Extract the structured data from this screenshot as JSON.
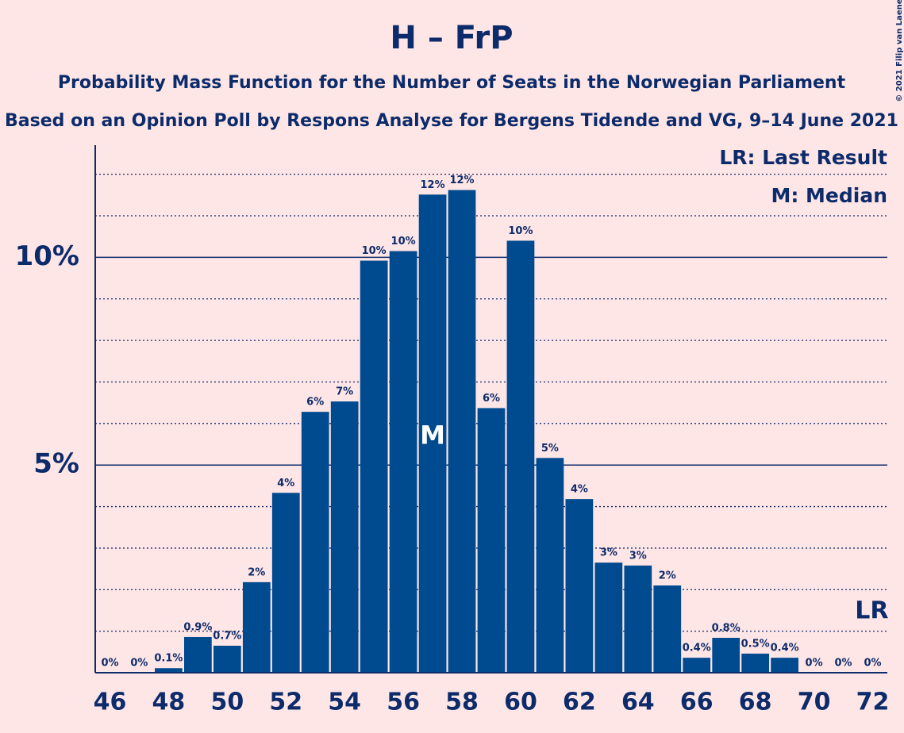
{
  "chart_data": {
    "type": "bar",
    "title": "H – FrP",
    "subtitle": "Probability Mass Function for the Number of Seats in the Norwegian Parliament",
    "subtitle2": "Based on an Opinion Poll by Respons Analyse for Bergens Tidende and VG, 9–14 June 2021",
    "copyright": "© 2021 Filip van Laenen",
    "x": [
      46,
      47,
      48,
      49,
      50,
      51,
      52,
      53,
      54,
      55,
      56,
      57,
      58,
      59,
      60,
      61,
      62,
      63,
      64,
      65,
      66,
      67,
      68,
      69,
      70,
      71,
      72
    ],
    "values": [
      0,
      0,
      0.11,
      0.86,
      0.65,
      2.18,
      4.33,
      6.28,
      6.53,
      9.92,
      10.15,
      11.51,
      11.62,
      6.37,
      10.4,
      5.17,
      4.18,
      2.65,
      2.58,
      2.1,
      0.36,
      0.84,
      0.46,
      0.36,
      0,
      0,
      0
    ],
    "value_labels": [
      "0%",
      "0%",
      "0.1%",
      "0.9%",
      "0.7%",
      "2%",
      "4%",
      "6%",
      "7%",
      "10%",
      "10%",
      "12%",
      "12%",
      "6%",
      "10%",
      "5%",
      "4%",
      "3%",
      "3%",
      "2%",
      "0.4%",
      "0.8%",
      "0.5%",
      "0.4%",
      "0%",
      "0%",
      "0%"
    ],
    "color": "#004a90",
    "xlim": [
      45.5,
      72.5
    ],
    "xticks": [
      46,
      48,
      50,
      52,
      54,
      56,
      58,
      60,
      62,
      64,
      66,
      68,
      70,
      72
    ],
    "ylim": [
      0,
      12.7
    ],
    "yticks": [
      {
        "value": 5,
        "label": "5%"
      },
      {
        "value": 10,
        "label": "10%"
      }
    ],
    "minor_yticks": [
      1,
      2,
      3,
      4,
      6,
      7,
      8,
      9,
      11,
      12
    ],
    "median": 57,
    "median_label": "M",
    "last_result": 72,
    "last_result_label": "LR",
    "legend": [
      "LR: Last Result",
      "M: Median"
    ]
  }
}
